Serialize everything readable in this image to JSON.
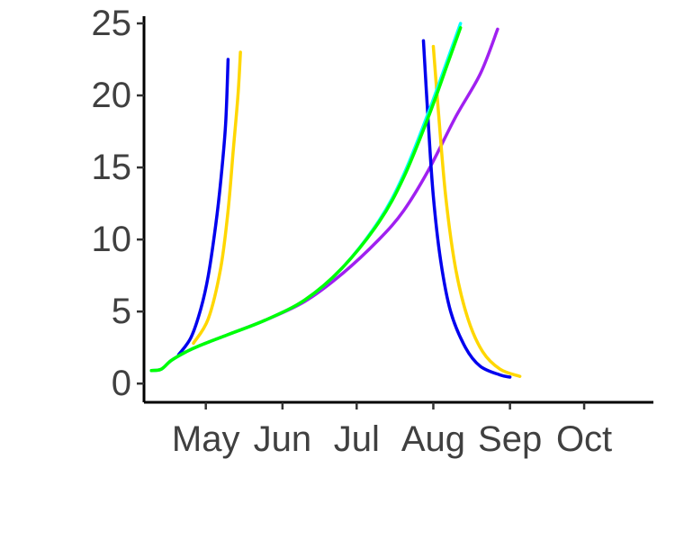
{
  "chart_data": {
    "type": "line",
    "title": "",
    "xlabel": "",
    "ylabel": "",
    "x_axis": {
      "type": "date",
      "range": [
        "2020-04-06",
        "2020-10-29"
      ],
      "ticks": [
        {
          "date": "2020-05-01",
          "label": "May"
        },
        {
          "date": "2020-06-01",
          "label": "Jun"
        },
        {
          "date": "2020-07-01",
          "label": "Jul"
        },
        {
          "date": "2020-08-01",
          "label": "Aug"
        },
        {
          "date": "2020-09-01",
          "label": "Sep"
        },
        {
          "date": "2020-10-01",
          "label": "Oct"
        }
      ]
    },
    "y_axis": {
      "range": [
        -1.3,
        25.5
      ],
      "ticks": [
        {
          "value": 0,
          "label": "0"
        },
        {
          "value": 5,
          "label": "5"
        },
        {
          "value": 10,
          "label": "10"
        },
        {
          "value": 15,
          "label": "15"
        },
        {
          "value": 20,
          "label": "20"
        },
        {
          "value": 25,
          "label": "25"
        }
      ]
    },
    "grid": false,
    "legend": "none",
    "series": [
      {
        "color": "#a020f0",
        "points": [
          [
            "2020-04-09",
            0.9
          ],
          [
            "2020-04-13",
            1.0
          ],
          [
            "2020-04-17",
            1.6
          ],
          [
            "2020-04-23",
            2.2
          ],
          [
            "2020-04-28",
            2.6
          ],
          [
            "2020-05-10",
            3.4
          ],
          [
            "2020-05-25",
            4.4
          ],
          [
            "2020-06-10",
            5.7
          ],
          [
            "2020-06-25",
            7.6
          ],
          [
            "2020-07-10",
            10.0
          ],
          [
            "2020-07-20",
            12.0
          ],
          [
            "2020-07-30",
            14.8
          ],
          [
            "2020-08-10",
            18.5
          ],
          [
            "2020-08-20",
            21.5
          ],
          [
            "2020-08-27",
            24.6
          ]
        ]
      },
      {
        "color": "#0000ee",
        "points": [
          [
            "2020-04-20",
            2.0
          ],
          [
            "2020-04-25",
            3.2
          ],
          [
            "2020-04-29",
            5.2
          ],
          [
            "2020-05-02",
            7.5
          ],
          [
            "2020-05-05",
            11.0
          ],
          [
            "2020-05-07",
            14.0
          ],
          [
            "2020-05-09",
            18.0
          ],
          [
            "2020-05-10",
            22.5
          ]
        ]
      },
      {
        "color": "#0000ee",
        "points": [
          [
            "2020-07-28",
            23.8
          ],
          [
            "2020-07-30",
            18.0
          ],
          [
            "2020-08-01",
            13.0
          ],
          [
            "2020-08-04",
            8.5
          ],
          [
            "2020-08-08",
            5.0
          ],
          [
            "2020-08-14",
            2.5
          ],
          [
            "2020-08-20",
            1.2
          ],
          [
            "2020-08-28",
            0.6
          ],
          [
            "2020-09-01",
            0.45
          ]
        ]
      },
      {
        "color": "#ffd700",
        "points": [
          [
            "2020-04-26",
            2.8
          ],
          [
            "2020-05-02",
            4.5
          ],
          [
            "2020-05-07",
            8.0
          ],
          [
            "2020-05-10",
            12.0
          ],
          [
            "2020-05-12",
            16.0
          ],
          [
            "2020-05-14",
            20.0
          ],
          [
            "2020-05-15",
            23.0
          ]
        ]
      },
      {
        "color": "#ffd700",
        "points": [
          [
            "2020-08-01",
            23.4
          ],
          [
            "2020-08-03",
            19.0
          ],
          [
            "2020-08-06",
            13.0
          ],
          [
            "2020-08-10",
            8.0
          ],
          [
            "2020-08-15",
            4.5
          ],
          [
            "2020-08-21",
            2.2
          ],
          [
            "2020-08-28",
            1.0
          ],
          [
            "2020-09-05",
            0.5
          ]
        ]
      },
      {
        "color": "#00ffff",
        "points": [
          [
            "2020-04-09",
            0.9
          ],
          [
            "2020-04-13",
            1.0
          ],
          [
            "2020-04-17",
            1.6
          ],
          [
            "2020-04-23",
            2.2
          ],
          [
            "2020-04-28",
            2.6
          ],
          [
            "2020-05-10",
            3.4
          ],
          [
            "2020-05-25",
            4.4
          ],
          [
            "2020-06-10",
            5.8
          ],
          [
            "2020-06-25",
            8.0
          ],
          [
            "2020-07-10",
            11.3
          ],
          [
            "2020-07-20",
            14.5
          ],
          [
            "2020-07-30",
            18.8
          ],
          [
            "2020-08-07",
            22.6
          ],
          [
            "2020-08-12",
            25.0
          ]
        ]
      },
      {
        "color": "#00ff00",
        "points": [
          [
            "2020-04-09",
            0.9
          ],
          [
            "2020-04-13",
            1.0
          ],
          [
            "2020-04-17",
            1.6
          ],
          [
            "2020-04-23",
            2.2
          ],
          [
            "2020-04-28",
            2.6
          ],
          [
            "2020-05-10",
            3.4
          ],
          [
            "2020-05-25",
            4.4
          ],
          [
            "2020-06-10",
            5.8
          ],
          [
            "2020-06-25",
            8.0
          ],
          [
            "2020-07-10",
            11.2
          ],
          [
            "2020-07-20",
            14.3
          ],
          [
            "2020-07-30",
            18.5
          ],
          [
            "2020-08-07",
            22.3
          ],
          [
            "2020-08-12",
            24.7
          ]
        ]
      }
    ]
  }
}
